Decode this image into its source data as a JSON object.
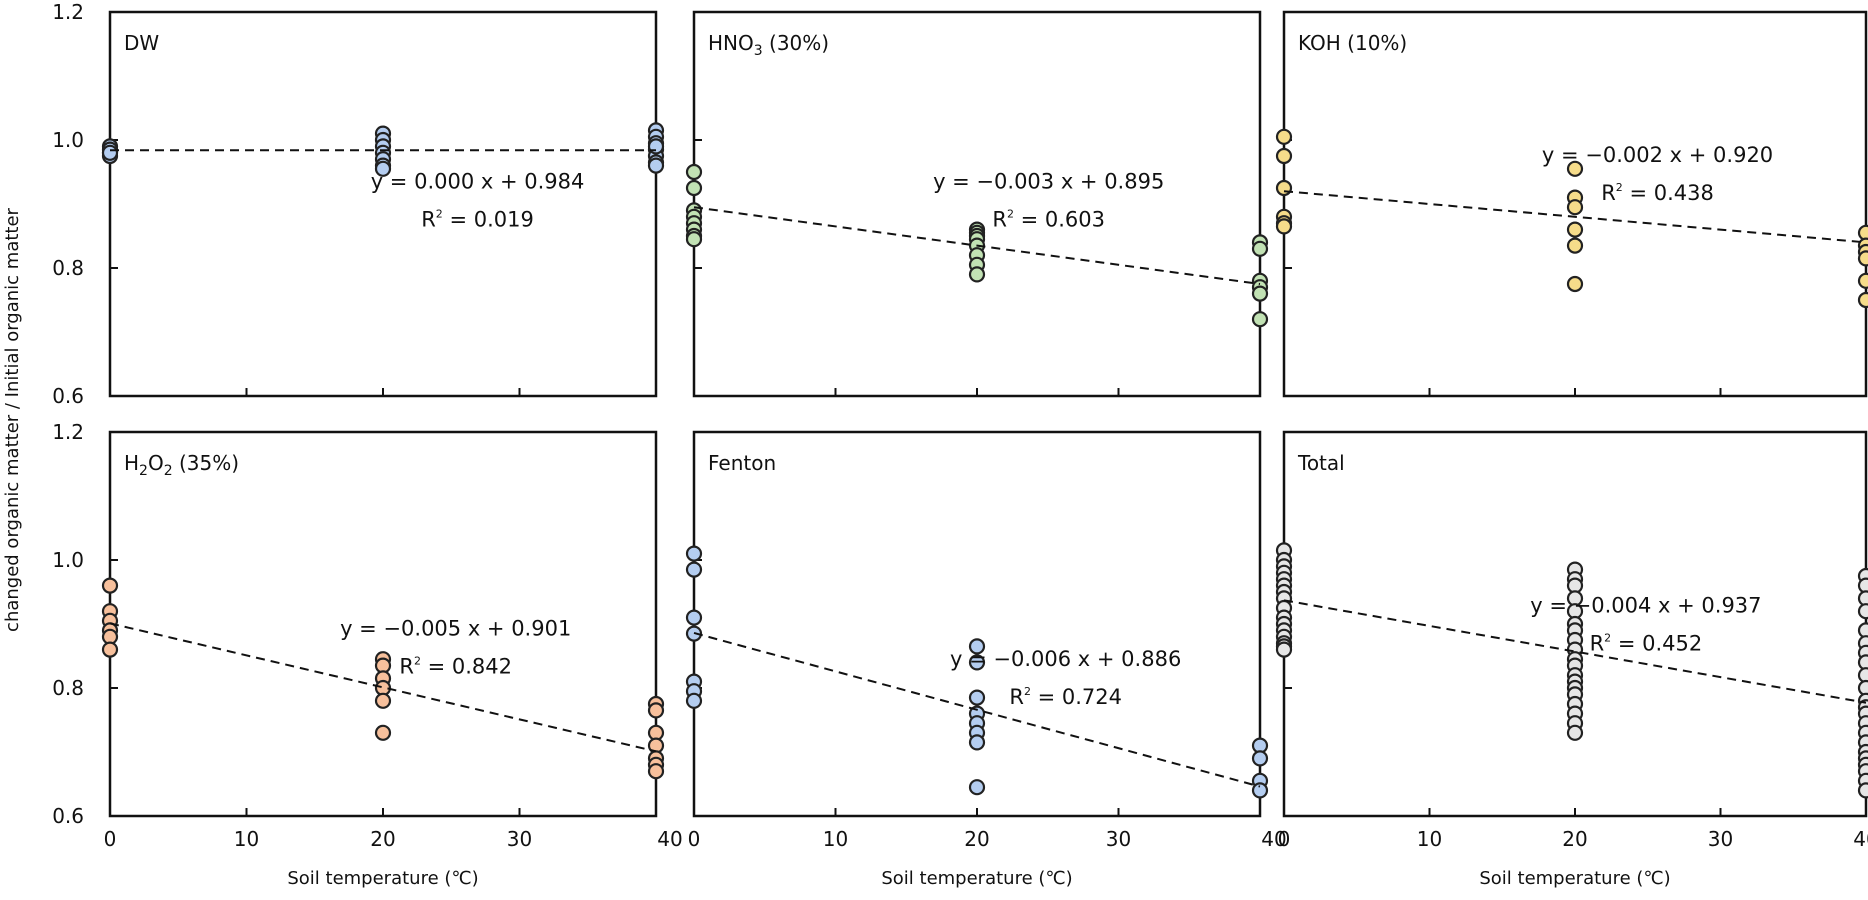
{
  "chart_data": {
    "type": "scatter",
    "ylabel": "changed organic matter / Initial organic matter",
    "xlabel": "Soil temperature (℃)",
    "xlim": [
      0,
      40
    ],
    "ylim": [
      0.6,
      1.2
    ],
    "x_ticks": [
      "0",
      "10",
      "20",
      "30",
      "40"
    ],
    "y_ticks": [
      "0.6",
      "0.8",
      "1.0",
      "1.2"
    ],
    "panels": [
      {
        "label": "DW",
        "color": "#b4cdf0",
        "points": [
          {
            "x": 0,
            "y": [
              0.99,
              0.98,
              0.985,
              0.975,
              0.98
            ]
          },
          {
            "x": 20,
            "y": [
              1.01,
              1.0,
              0.99,
              0.98,
              0.97,
              0.96,
              0.955
            ]
          },
          {
            "x": 40,
            "y": [
              1.015,
              1.005,
              0.995,
              0.985,
              0.975,
              0.965,
              0.96,
              0.99
            ]
          }
        ],
        "trend": {
          "slope": 0.0,
          "intercept": 0.984
        },
        "equation": "y = 0.000 x + 0.984",
        "r2_value": "= 0.019"
      },
      {
        "label": "HNO3 (30%)",
        "label_main": "HNO",
        "label_sub": "3",
        "label_tail": " (30%)",
        "color": "#c2e2b4",
        "points": [
          {
            "x": 0,
            "y": [
              0.95,
              0.925,
              0.89,
              0.88,
              0.87,
              0.86,
              0.85,
              0.845
            ]
          },
          {
            "x": 20,
            "y": [
              0.86,
              0.855,
              0.85,
              0.845,
              0.835,
              0.82,
              0.805,
              0.79
            ]
          },
          {
            "x": 40,
            "y": [
              0.84,
              0.83,
              0.78,
              0.77,
              0.76,
              0.72
            ]
          }
        ],
        "trend": {
          "slope": -0.003,
          "intercept": 0.895
        },
        "equation": "y = −0.003 x + 0.895",
        "r2_value": "= 0.603"
      },
      {
        "label": "KOH (10%)",
        "color": "#f6dc8a",
        "points": [
          {
            "x": 0,
            "y": [
              1.005,
              0.975,
              0.925,
              0.88,
              0.87,
              0.865
            ]
          },
          {
            "x": 20,
            "y": [
              0.955,
              0.91,
              0.895,
              0.86,
              0.835,
              0.775
            ]
          },
          {
            "x": 40,
            "y": [
              0.855,
              0.835,
              0.825,
              0.815,
              0.78,
              0.75
            ]
          }
        ],
        "trend": {
          "slope": -0.002,
          "intercept": 0.92
        },
        "equation": "y = −0.002 x + 0.920",
        "r2_value": "= 0.438"
      },
      {
        "label": "H2O2 (35%)",
        "label_main": "H",
        "label_sub": "2",
        "label_mid": "O",
        "label_sub2": "2",
        "label_tail": " (35%)",
        "color": "#f7c09c",
        "points": [
          {
            "x": 0,
            "y": [
              0.96,
              0.92,
              0.905,
              0.89,
              0.88,
              0.86
            ]
          },
          {
            "x": 20,
            "y": [
              0.845,
              0.835,
              0.815,
              0.8,
              0.78,
              0.73
            ]
          },
          {
            "x": 40,
            "y": [
              0.775,
              0.765,
              0.73,
              0.71,
              0.69,
              0.68,
              0.67
            ]
          }
        ],
        "trend": {
          "slope": -0.005,
          "intercept": 0.901
        },
        "equation": "y = −0.005 x + 0.901",
        "r2_value": "= 0.842"
      },
      {
        "label": "Fenton",
        "color": "#b4cdf0",
        "points": [
          {
            "x": 0,
            "y": [
              1.01,
              0.985,
              0.91,
              0.885,
              0.81,
              0.795,
              0.78
            ]
          },
          {
            "x": 20,
            "y": [
              0.865,
              0.84,
              0.785,
              0.76,
              0.745,
              0.73,
              0.715,
              0.645
            ]
          },
          {
            "x": 40,
            "y": [
              0.71,
              0.69,
              0.655,
              0.64
            ]
          }
        ],
        "trend": {
          "slope": -0.006,
          "intercept": 0.886
        },
        "equation": "y = −0.006 x + 0.886",
        "r2_value": "= 0.724"
      },
      {
        "label": "Total",
        "color": "#e6e6e6",
        "points": [
          {
            "x": 0,
            "y": [
              1.015,
              1.0,
              0.99,
              0.98,
              0.97,
              0.96,
              0.95,
              0.94,
              0.925,
              0.91,
              0.9,
              0.89,
              0.88,
              0.87,
              0.865,
              0.86
            ]
          },
          {
            "x": 20,
            "y": [
              0.985,
              0.97,
              0.96,
              0.94,
              0.92,
              0.9,
              0.89,
              0.875,
              0.86,
              0.845,
              0.835,
              0.82,
              0.81,
              0.8,
              0.79,
              0.775,
              0.76,
              0.745,
              0.73
            ]
          },
          {
            "x": 40,
            "y": [
              0.975,
              0.96,
              0.94,
              0.92,
              0.89,
              0.87,
              0.855,
              0.84,
              0.82,
              0.8,
              0.78,
              0.77,
              0.76,
              0.745,
              0.73,
              0.715,
              0.7,
              0.69,
              0.68,
              0.67,
              0.655,
              0.64
            ]
          }
        ],
        "trend": {
          "slope": -0.004,
          "intercept": 0.937
        },
        "equation": "y = −0.004 x + 0.937",
        "r2_value": "= 0.452"
      }
    ]
  }
}
